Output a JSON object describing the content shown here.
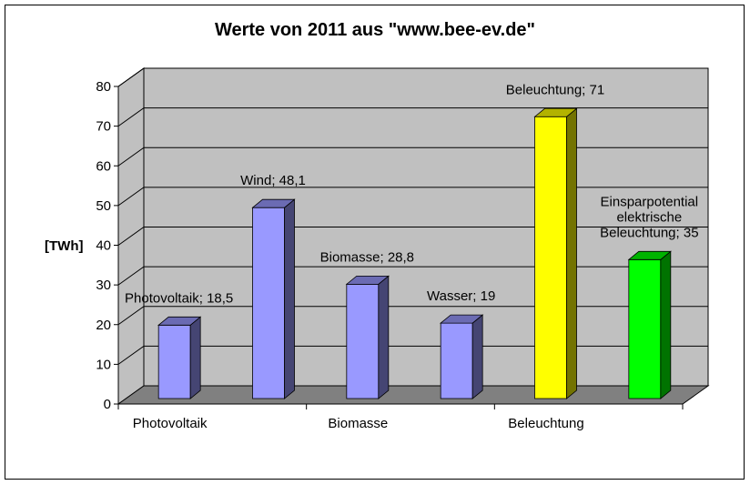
{
  "chart_data": {
    "type": "bar",
    "title": "Werte von 2011 aus \"www.bee-ev.de\"",
    "ylabel": "[TWh]",
    "xlabel": "",
    "ylim": [
      0,
      80
    ],
    "yticks": [
      0,
      10,
      20,
      30,
      40,
      50,
      60,
      70,
      80
    ],
    "grid": true,
    "categories": [
      "Photovoltaik",
      "Wind",
      "Biomasse",
      "Wasser",
      "Beleuchtung",
      "Einsparpotential elektrische Beleuchtung"
    ],
    "x_tick_labels": [
      "Photovoltaik",
      "",
      "Biomasse",
      "",
      "Beleuchtung",
      ""
    ],
    "values": [
      18.5,
      48.1,
      28.8,
      19,
      71,
      35
    ],
    "data_labels": [
      [
        "Photovoltaik; 18,5"
      ],
      [
        "Wind; 48,1"
      ],
      [
        "Biomasse; 28,8"
      ],
      [
        "Wasser; 19"
      ],
      [
        "Beleuchtung; 71"
      ],
      [
        "Einsparpotential",
        "elektrische",
        "Beleuchtung; 35"
      ]
    ],
    "colors": [
      "#9999ff",
      "#9999ff",
      "#9999ff",
      "#9999ff",
      "#ffff00",
      "#00ff00"
    ],
    "wall_color": "#c0c0c0",
    "floor_color": "#808080"
  }
}
